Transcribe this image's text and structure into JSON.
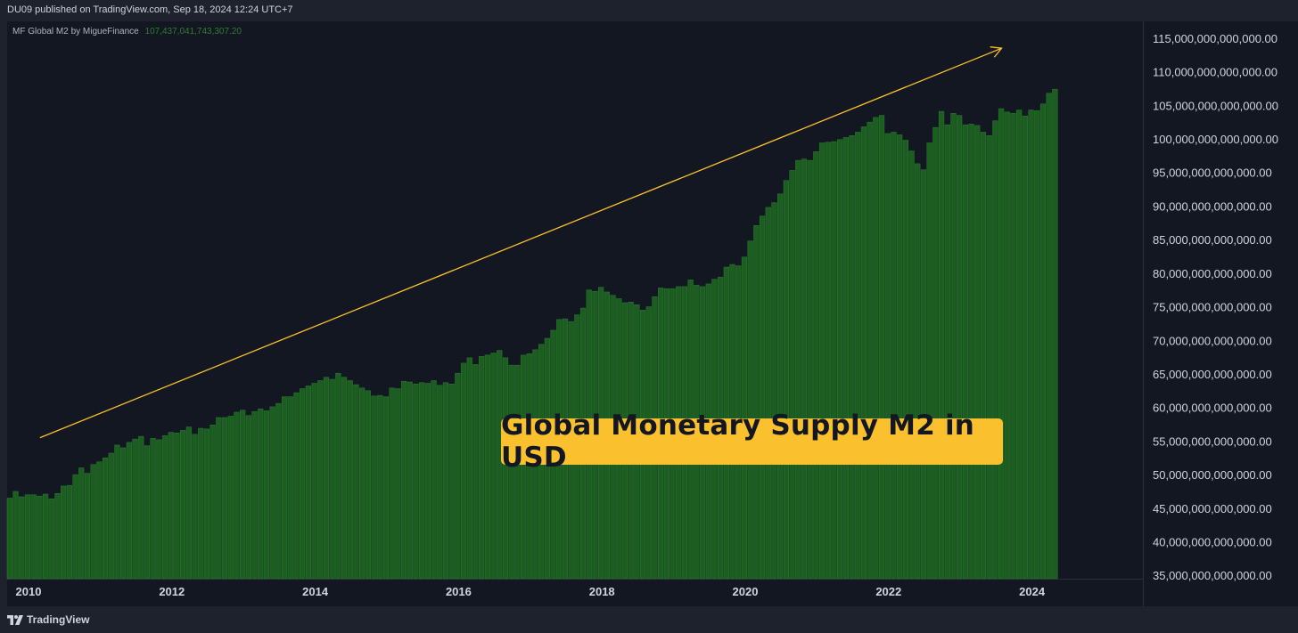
{
  "header": {
    "published_text": "DU09 published on TradingView.com, Sep 18, 2024 12:24 UTC+7"
  },
  "legend": {
    "indicator_name": "MF Global M2 by MigueFinance",
    "last_value": "107,437,041,743,307.20"
  },
  "annotation": {
    "callout_text": "Global Monetary Supply M2 in USD"
  },
  "footer": {
    "brand": "TradingView"
  },
  "colors": {
    "bar": "#1b5e20",
    "bar_edge": "#2e7d32",
    "trend_arrow": "#fbc02d",
    "callout_bg": "#fbc02d",
    "background": "#131722"
  },
  "chart_data": {
    "type": "bar",
    "title": "",
    "xlabel": "",
    "ylabel": "",
    "x_start": "2010-01",
    "x_frequency": "monthly",
    "x_ticks": [
      "2010",
      "2012",
      "2014",
      "2016",
      "2018",
      "2020",
      "2022",
      "2024"
    ],
    "y_ticks": [
      "115,000,000,000,000.00",
      "110,000,000,000,000.00",
      "105,000,000,000,000.00",
      "100,000,000,000,000.00",
      "95,000,000,000,000.00",
      "90,000,000,000,000.00",
      "85,000,000,000,000.00",
      "80,000,000,000,000.00",
      "75,000,000,000,000.00",
      "70,000,000,000,000.00",
      "65,000,000,000,000.00",
      "60,000,000,000,000.00",
      "55,000,000,000,000.00",
      "50,000,000,000,000.00",
      "45,000,000,000,000.00",
      "40,000,000,000,000.00",
      "35,000,000,000,000.00"
    ],
    "ylim_trillions": [
      34.5,
      117.5
    ],
    "units": "trillions USD",
    "values": [
      46.5,
      47.5,
      46.7,
      47.0,
      47.0,
      46.8,
      47.1,
      46.4,
      47.2,
      48.3,
      48.4,
      50.0,
      51.0,
      50.2,
      51.5,
      51.9,
      52.5,
      53.2,
      54.4,
      54.0,
      54.8,
      55.3,
      55.7,
      54.3,
      55.4,
      55.2,
      55.8,
      56.3,
      56.2,
      56.6,
      57.1,
      56.0,
      56.9,
      56.8,
      57.4,
      58.5,
      58.5,
      58.7,
      59.3,
      59.6,
      58.8,
      59.4,
      59.8,
      59.5,
      60.1,
      60.6,
      61.6,
      61.6,
      62.2,
      62.8,
      63.2,
      63.6,
      64.0,
      64.5,
      64.2,
      65.1,
      64.5,
      64.0,
      63.4,
      62.9,
      62.5,
      61.7,
      61.8,
      61.6,
      62.9,
      62.8,
      63.9,
      63.8,
      63.5,
      63.7,
      63.6,
      64.0,
      63.3,
      63.7,
      63.5,
      65.1,
      66.6,
      67.4,
      66.4,
      67.6,
      67.8,
      68.1,
      68.5,
      67.4,
      66.3,
      66.3,
      67.8,
      68.0,
      68.6,
      69.4,
      70.3,
      71.5,
      73.1,
      73.2,
      72.8,
      73.8,
      74.8,
      77.5,
      77.3,
      77.9,
      77.2,
      76.7,
      76.2,
      75.6,
      75.7,
      75.3,
      74.5,
      75.0,
      76.5,
      77.8,
      77.7,
      77.7,
      78.0,
      78.0,
      79.0,
      78.2,
      78.0,
      78.4,
      79.1,
      79.4,
      80.9,
      81.3,
      81.1,
      82.4,
      84.8,
      87.1,
      88.5,
      89.8,
      90.5,
      91.8,
      93.8,
      95.3,
      96.8,
      97.0,
      96.8,
      98.1,
      99.4,
      99.5,
      99.6,
      99.9,
      100.2,
      100.5,
      101.0,
      101.8,
      102.5,
      103.2,
      103.5,
      100.8,
      101.0,
      100.6,
      99.8,
      98.2,
      96.3,
      95.4,
      99.4,
      101.7,
      104.1,
      102.1,
      103.8,
      103.5,
      102.1,
      102.2,
      102.0,
      101.0,
      100.5,
      102.7,
      104.5,
      104.0,
      103.8,
      104.3,
      103.4,
      104.3,
      104.2,
      105.2,
      106.8,
      107.4
    ],
    "trend_arrow": {
      "from": {
        "x": "2010-06",
        "y": 55.5
      },
      "to": {
        "x": "2023-11",
        "y": 113.5
      }
    },
    "grid": false,
    "legend": "top-left"
  }
}
